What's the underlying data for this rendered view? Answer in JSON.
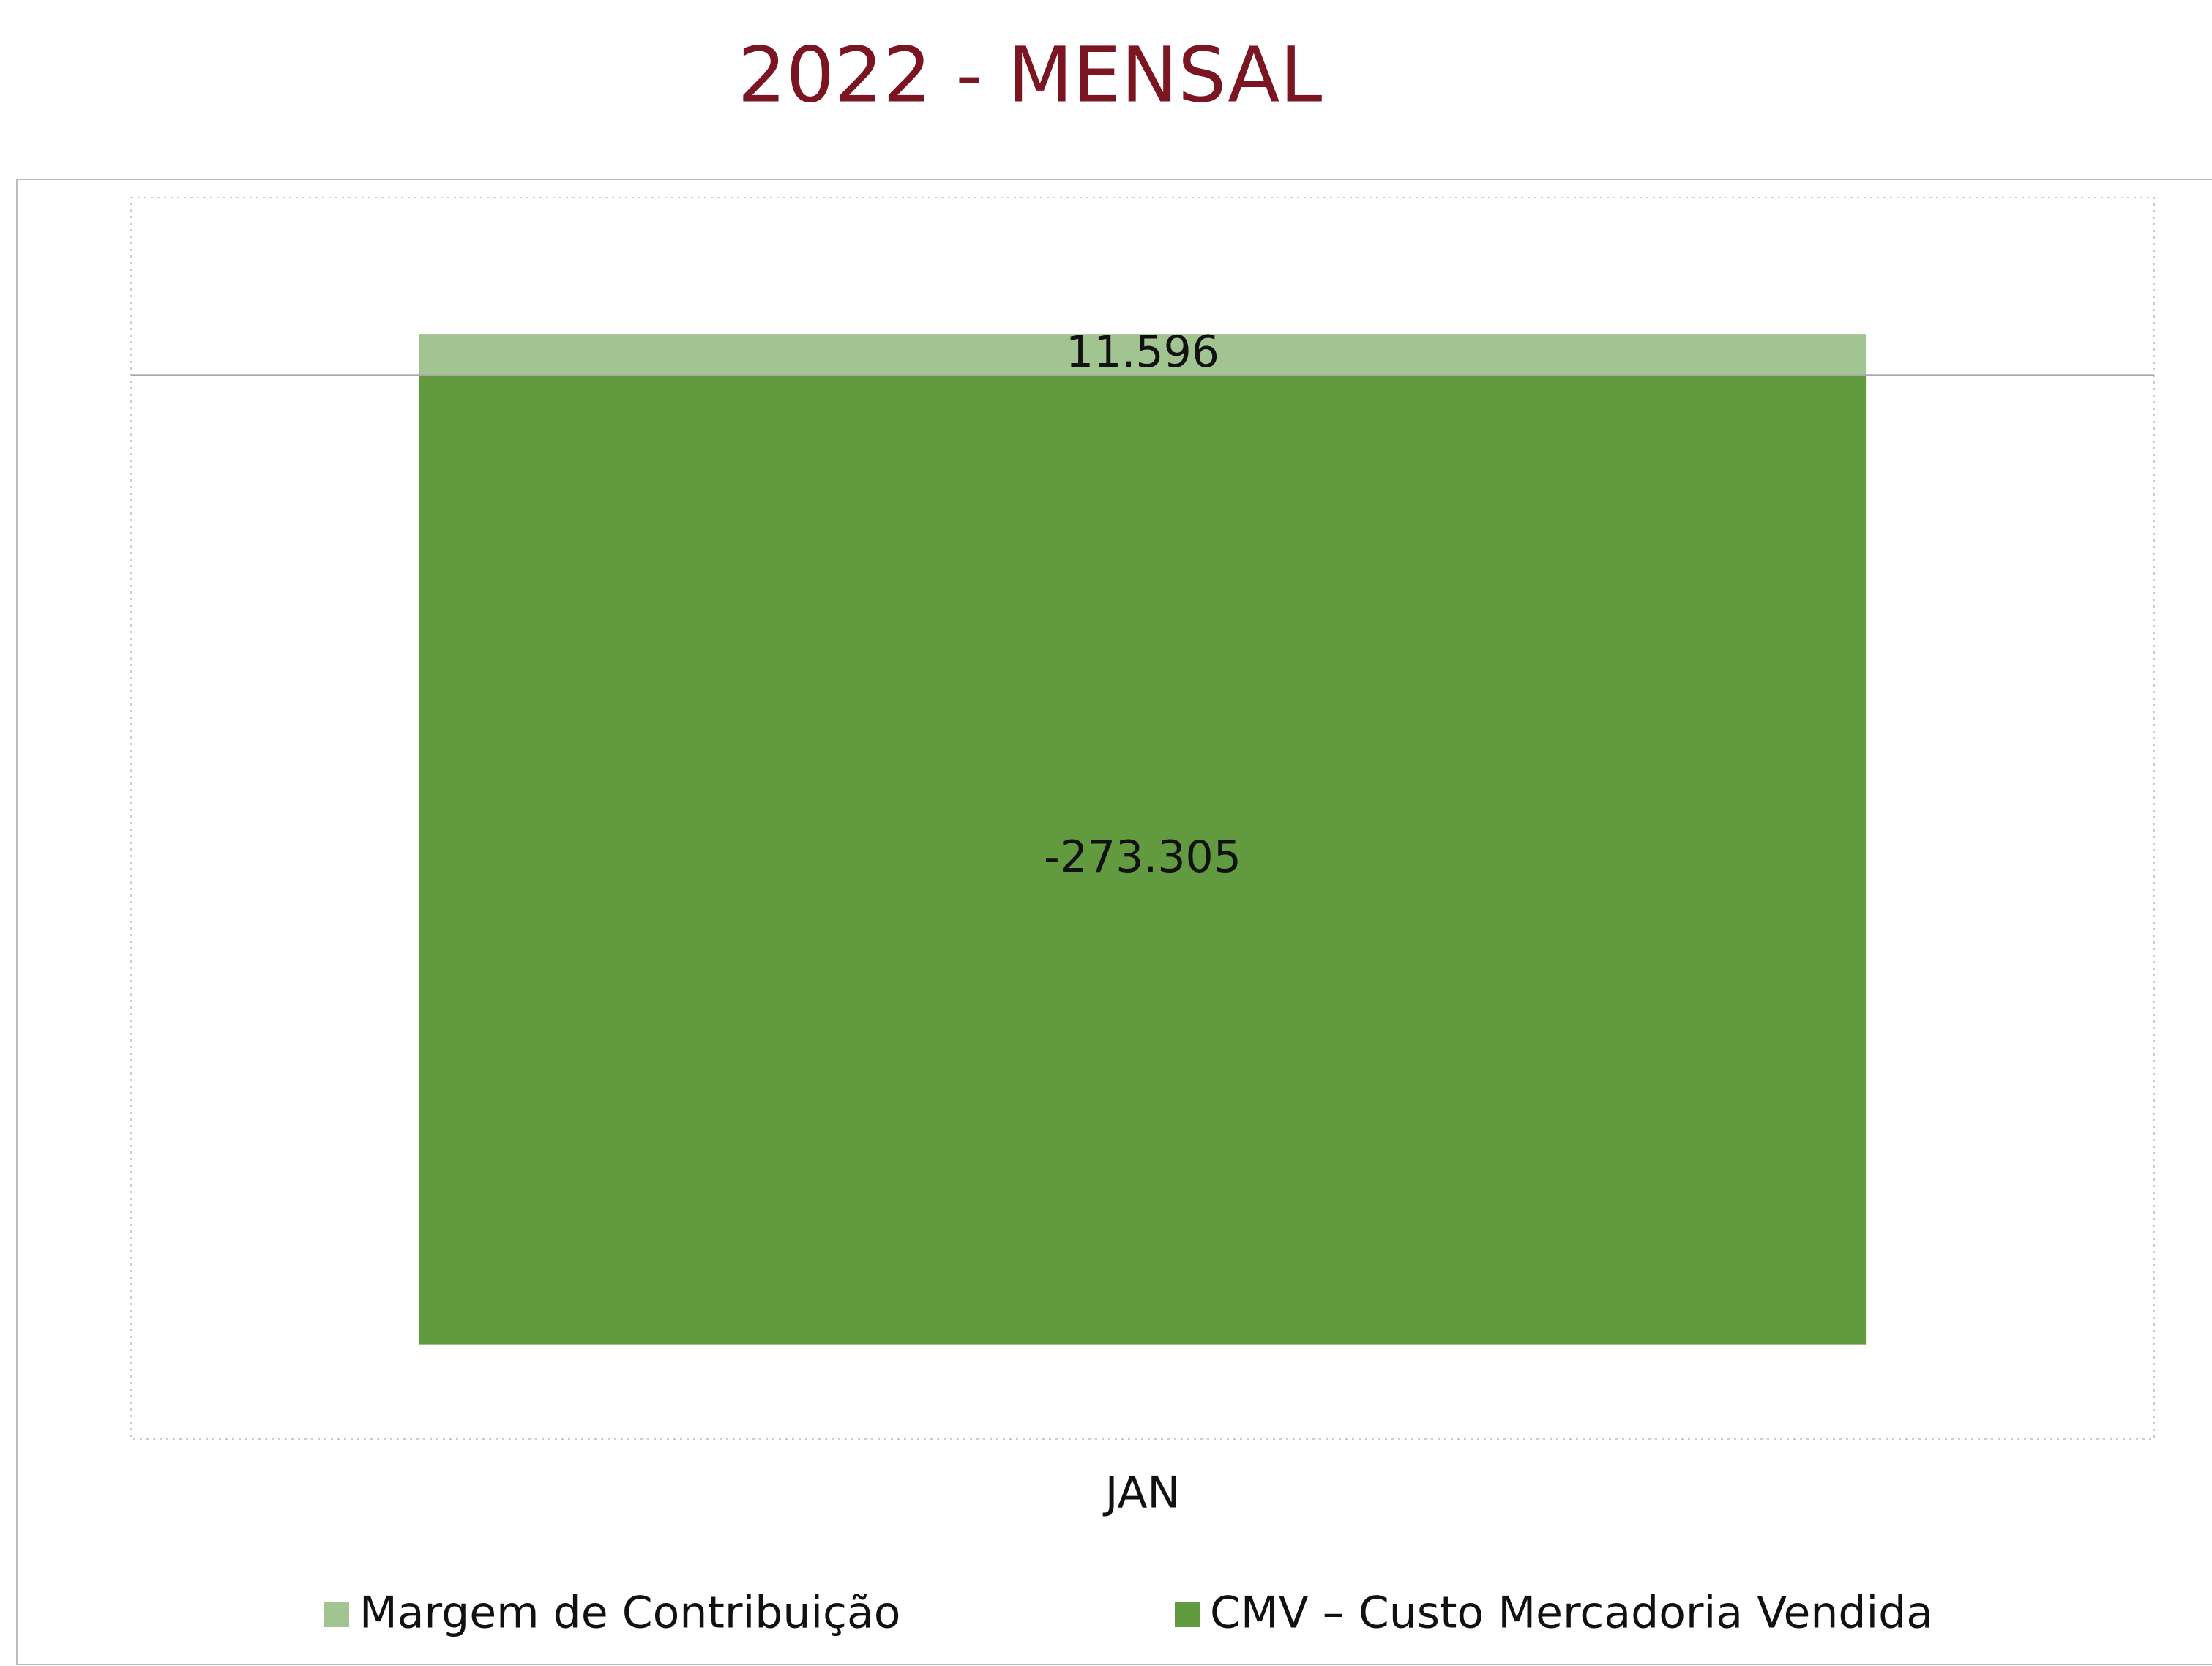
{
  "chart_data": {
    "type": "stacked_bar",
    "title": "2022 - MENSAL",
    "categories": [
      "JAN"
    ],
    "series": [
      {
        "name": "Margem de Contribuição",
        "color": "#a2c491",
        "values": [
          11596
        ],
        "value_labels": [
          "11.596"
        ]
      },
      {
        "name": "CMV – Custo Mercadoria Vendida",
        "color": "#629a3f",
        "values": [
          -273305
        ],
        "value_labels": [
          "-273.305"
        ]
      }
    ],
    "ylim": [
      -300000,
      50000
    ],
    "legend": "bottom"
  }
}
